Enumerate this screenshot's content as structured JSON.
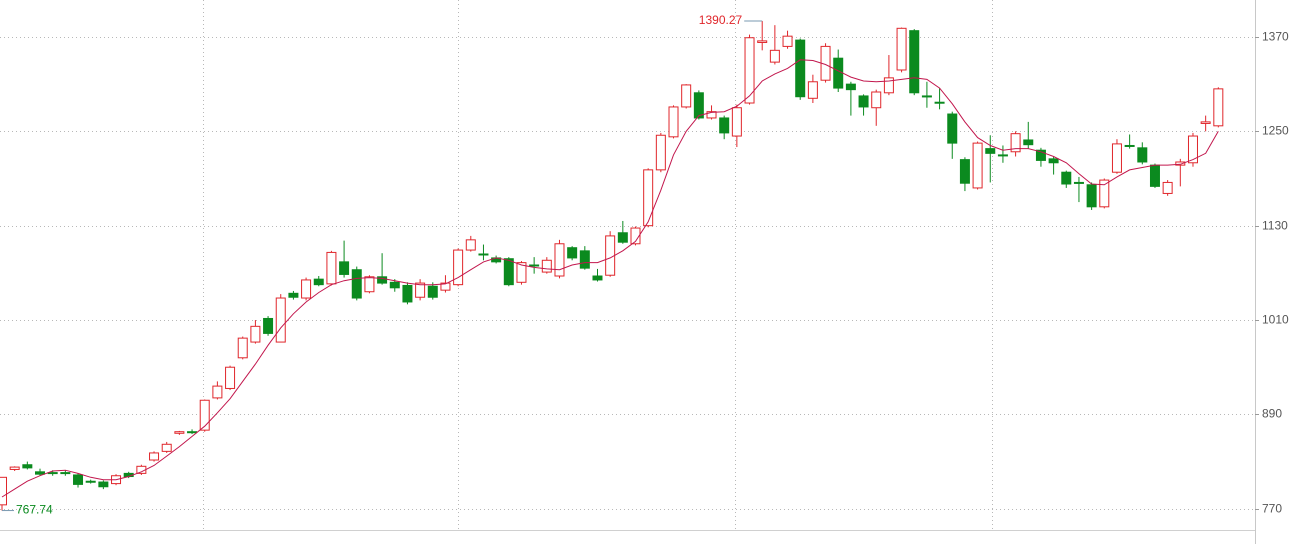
{
  "chart_data": {
    "type": "candlestick",
    "ylim": [
      743,
      1417
    ],
    "yticks": [
      770,
      890,
      1010,
      1130,
      1250,
      1370
    ],
    "grid": true,
    "up_color": "#e0262b",
    "down_color": "#0b8a1f",
    "open": [
      775,
      820,
      826,
      817,
      816,
      816,
      813,
      805,
      804,
      802,
      815,
      815,
      832,
      843,
      866,
      868,
      870,
      911,
      923,
      962,
      982,
      1012,
      982,
      1044,
      1038,
      1062,
      1056,
      1084,
      1074,
      1046,
      1065,
      1058,
      1054,
      1039,
      1053,
      1048,
      1055,
      1099,
      1094,
      1089,
      1088,
      1058,
      1080,
      1071,
      1066,
      1102,
      1098,
      1066,
      1067,
      1121,
      1107,
      1130,
      1201,
      1243,
      1281,
      1299,
      1267,
      1267,
      1244,
      1286,
      1363,
      1338,
      1358,
      1366,
      1292,
      1315,
      1343,
      1310,
      1295,
      1280,
      1299,
      1328,
      1378,
      1295,
      1287,
      1272,
      1214,
      1178,
      1228,
      1220,
      1224,
      1239,
      1226,
      1215,
      1198,
      1185,
      1182,
      1154,
      1198,
      1232,
      1229,
      1207,
      1171,
      1207,
      1210,
      1260,
      1257
    ],
    "close": [
      810,
      823,
      822,
      814,
      815,
      815,
      801,
      804,
      798,
      812,
      811,
      824,
      841,
      852,
      868,
      867,
      908,
      926,
      950,
      987,
      1002,
      993,
      1038,
      1039,
      1061,
      1055,
      1096,
      1068,
      1038,
      1065,
      1057,
      1051,
      1033,
      1057,
      1039,
      1057,
      1099,
      1112,
      1093,
      1084,
      1055,
      1083,
      1079,
      1086,
      1107,
      1089,
      1076,
      1061,
      1117,
      1109,
      1127,
      1201,
      1245,
      1281,
      1309,
      1267,
      1275,
      1248,
      1280,
      1369,
      1365,
      1353,
      1371,
      1294,
      1313,
      1358,
      1305,
      1303,
      1281,
      1300,
      1318,
      1381,
      1299,
      1294,
      1286,
      1235,
      1184,
      1235,
      1222,
      1219,
      1247,
      1233,
      1213,
      1210,
      1183,
      1184,
      1154,
      1188,
      1234,
      1231,
      1211,
      1180,
      1185,
      1211,
      1244,
      1262,
      1304
    ],
    "high": [
      810,
      824,
      830,
      821,
      819,
      819,
      815,
      807,
      806,
      814,
      817,
      826,
      843,
      855,
      869,
      871,
      909,
      932,
      952,
      989,
      1010,
      1015,
      1043,
      1047,
      1064,
      1066,
      1098,
      1111,
      1078,
      1067,
      1095,
      1062,
      1058,
      1062,
      1058,
      1067,
      1101,
      1117,
      1106,
      1092,
      1090,
      1085,
      1090,
      1090,
      1112,
      1104,
      1104,
      1075,
      1123,
      1136,
      1129,
      1203,
      1248,
      1283,
      1310,
      1302,
      1283,
      1270,
      1284,
      1373,
      1390.27,
      1385,
      1378,
      1368,
      1322,
      1362,
      1354,
      1313,
      1297,
      1303,
      1347,
      1382,
      1380,
      1313,
      1305,
      1275,
      1217,
      1237,
      1245,
      1232,
      1250,
      1262,
      1229,
      1218,
      1200,
      1192,
      1185,
      1190,
      1240,
      1246,
      1236,
      1209,
      1188,
      1215,
      1248,
      1270,
      1306
    ],
    "low": [
      767.74,
      818,
      820,
      812,
      812,
      812,
      797,
      802,
      795,
      800,
      809,
      813,
      830,
      841,
      864,
      865,
      868,
      909,
      921,
      960,
      980,
      990,
      982,
      1036,
      1035,
      1053,
      1054,
      1064,
      1035,
      1044,
      1055,
      1046,
      1030,
      1035,
      1036,
      1045,
      1053,
      1097,
      1086,
      1082,
      1053,
      1055,
      1069,
      1069,
      1063,
      1086,
      1074,
      1059,
      1065,
      1107,
      1105,
      1128,
      1198,
      1241,
      1279,
      1265,
      1265,
      1240,
      1230,
      1284,
      1353,
      1335,
      1355,
      1290,
      1286,
      1312,
      1300,
      1270,
      1270,
      1257,
      1296,
      1325,
      1296,
      1280,
      1278,
      1215,
      1174,
      1176,
      1185,
      1210,
      1218,
      1228,
      1205,
      1195,
      1178,
      1160,
      1150,
      1152,
      1196,
      1228,
      1208,
      1178,
      1168,
      1180,
      1205,
      1250,
      1255
    ],
    "ma": {
      "color": "#c2174d",
      "values": [
        785,
        795,
        805,
        812,
        818,
        819,
        815,
        810,
        807,
        807,
        811,
        817,
        825,
        837,
        849,
        862,
        875,
        892,
        910,
        932,
        954,
        978,
        1000,
        1018,
        1033,
        1045,
        1055,
        1060,
        1063,
        1064,
        1063,
        1060,
        1057,
        1055,
        1055,
        1056,
        1064,
        1074,
        1084,
        1089,
        1086,
        1080,
        1077,
        1075,
        1074,
        1080,
        1083,
        1083,
        1089,
        1098,
        1110,
        1135,
        1175,
        1220,
        1250,
        1270,
        1274,
        1275,
        1282,
        1295,
        1314,
        1323,
        1330,
        1341,
        1340,
        1335,
        1327,
        1319,
        1314,
        1313,
        1314,
        1316,
        1318,
        1316,
        1305,
        1285,
        1262,
        1242,
        1232,
        1226,
        1228,
        1228,
        1224,
        1218,
        1210,
        1196,
        1183,
        1182,
        1192,
        1201,
        1204,
        1207,
        1207,
        1208,
        1214,
        1222,
        1250
      ]
    }
  }
}
